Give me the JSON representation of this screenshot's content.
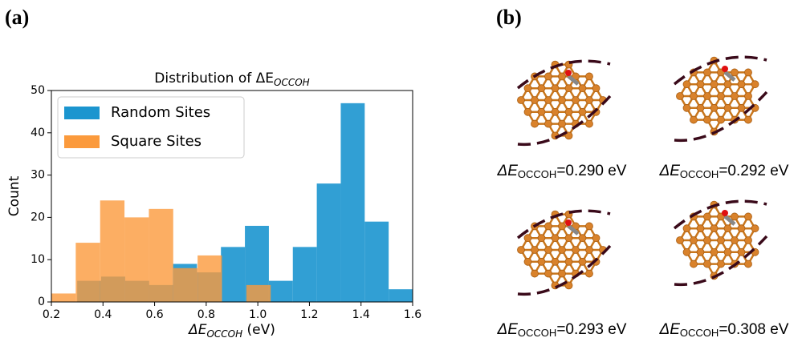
{
  "panel_labels": [
    "(a)",
    "(b)"
  ],
  "chart_data": {
    "type": "histogram",
    "title": {
      "text": "Distribution of ΔE",
      "subscript": "OCCOH"
    },
    "xlabel": {
      "text": "ΔE",
      "subscript": "OCCOH",
      "unit": " (eV)"
    },
    "ylabel": "Count",
    "xlim": [
      0.2,
      1.6
    ],
    "xticks": [
      0.2,
      0.4,
      0.6,
      0.8,
      {
        "value": 1,
        "label": "1.0"
      },
      1.2,
      1.4,
      1.6
    ],
    "ylim": [
      0,
      50
    ],
    "yticks": [
      0,
      10,
      20,
      30,
      40,
      50
    ],
    "legend": "upper left",
    "series": [
      {
        "name": "Random Sites",
        "color": "#1b95cf",
        "bins": [
          0.3,
          0.3929,
          0.4857,
          0.5786,
          0.6714,
          0.7643,
          0.8571,
          0.95,
          1.0429,
          1.1357,
          1.2286,
          1.3214,
          1.4143,
          1.5071,
          1.6
        ],
        "values": [
          5,
          6,
          5,
          4,
          9,
          7,
          13,
          18,
          5,
          13,
          28,
          47,
          19,
          3
        ]
      },
      {
        "name": "Square Sites",
        "color": "#fb9a3c",
        "bins": [
          0.2,
          0.2944,
          0.3889,
          0.4833,
          0.5778,
          0.6722,
          0.7667,
          0.8611,
          0.9556,
          1.05
        ],
        "values": [
          2,
          14,
          24,
          20,
          22,
          8,
          11,
          0,
          4
        ]
      }
    ]
  },
  "panel_b": {
    "captions": [
      {
        "symbol": "ΔE",
        "subscript": "OCCOH",
        "text": "=0.290 eV"
      },
      {
        "symbol": "ΔE",
        "subscript": "OCCOH",
        "text": "=0.292 eV"
      },
      {
        "symbol": "ΔE",
        "subscript": "OCCOH",
        "text": "=0.293 eV"
      },
      {
        "symbol": "ΔE",
        "subscript": "OCCOH",
        "text": "=0.308 eV"
      }
    ]
  }
}
